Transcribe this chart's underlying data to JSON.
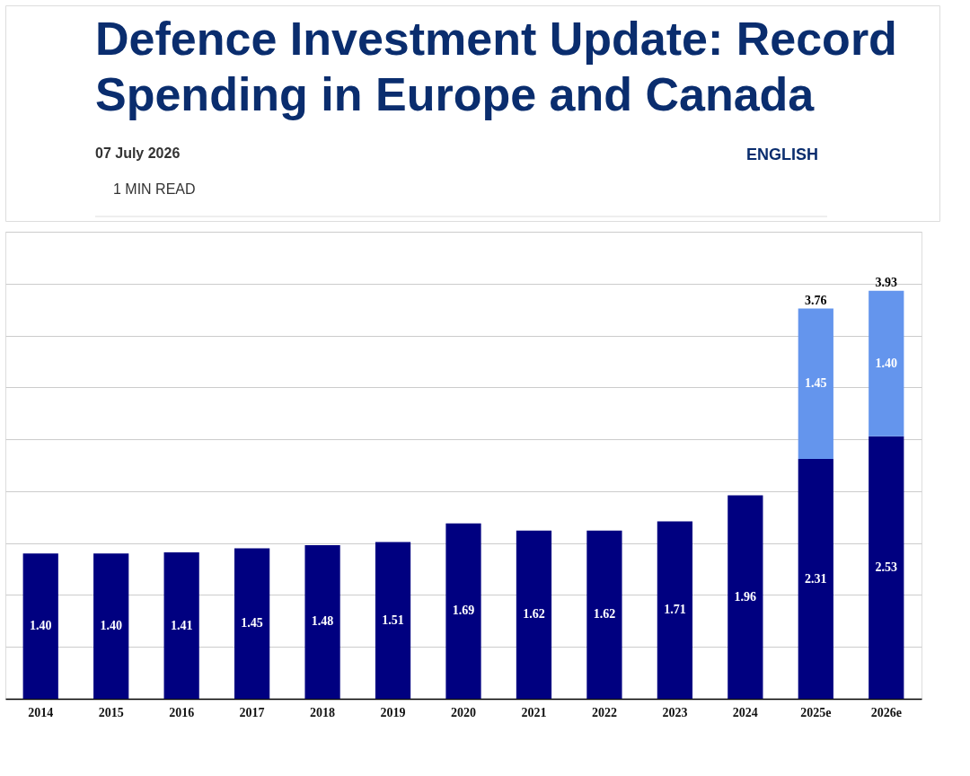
{
  "chart_data": {
    "type": "bar",
    "title": "Defence Investment Update: Record Spending in Europe and Canada",
    "annotations": [
      "07 July 2026",
      "1 MIN READ",
      "ENGLISH"
    ],
    "categories": [
      "2014",
      "2015",
      "2016",
      "2017",
      "2018",
      "2019",
      "2020",
      "2021",
      "2022",
      "2023",
      "2024",
      "2025e",
      "2026e"
    ],
    "stacked": true,
    "series": [
      {
        "color": "#000080",
        "values": [
          1.4,
          1.4,
          1.41,
          1.45,
          1.48,
          1.51,
          1.69,
          1.62,
          1.62,
          1.71,
          1.96,
          2.31,
          2.53
        ],
        "value_labels": [
          "1.40",
          "1.40",
          "1.41",
          "1.45",
          "1.48",
          "1.51",
          "1.69",
          "1.62",
          "1.62",
          "1.71",
          "1.96",
          "2.31",
          "2.53"
        ]
      },
      {
        "color": "#6495ed",
        "values": [
          null,
          null,
          null,
          null,
          null,
          null,
          null,
          null,
          null,
          null,
          null,
          1.45,
          1.4
        ],
        "value_labels": [
          null,
          null,
          null,
          null,
          null,
          null,
          null,
          null,
          null,
          null,
          null,
          "1.45",
          "1.40"
        ]
      }
    ],
    "totals": [
      null,
      null,
      null,
      null,
      null,
      null,
      null,
      null,
      null,
      null,
      null,
      "3.76",
      "3.93"
    ],
    "ylim": [
      0,
      4.5
    ],
    "yticks": [
      {
        "value": 0,
        "label": null
      },
      {
        "value": 0.5,
        "label": null
      },
      {
        "value": 1,
        "label": null
      },
      {
        "value": 1.5,
        "label": null
      },
      {
        "value": 2,
        "label": null
      },
      {
        "value": 2.5,
        "label": null
      },
      {
        "value": 3,
        "label": null
      },
      {
        "value": 3.5,
        "label": null
      },
      {
        "value": 4,
        "label": null
      },
      {
        "value": 4.5,
        "label": null
      }
    ],
    "tick_labels": "x",
    "grid": "y"
  }
}
